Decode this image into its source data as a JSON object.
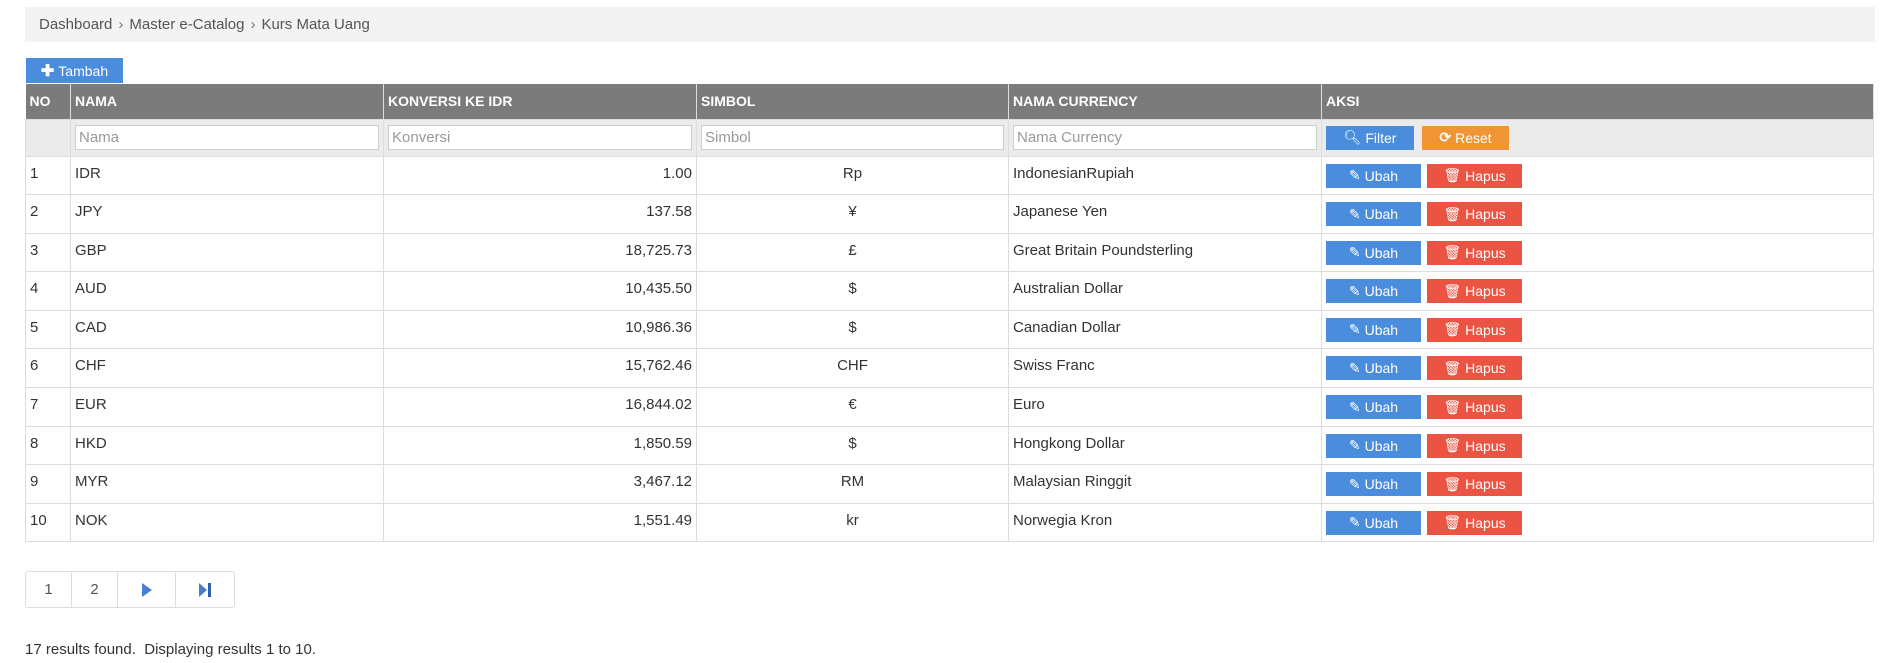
{
  "breadcrumb": [
    "Dashboard",
    "Master e-Catalog",
    "Kurs Mata Uang"
  ],
  "toolbar": {
    "add_label": "Tambah"
  },
  "table": {
    "columns": [
      "NO",
      "NAMA",
      "KONVERSI KE IDR",
      "SIMBOL",
      "NAMA CURRENCY",
      "AKSI"
    ],
    "filters": {
      "nama": "Nama",
      "konversi": "Konversi",
      "simbol": "Simbol",
      "nama_currency": "Nama Currency"
    },
    "filter_label": "Filter",
    "reset_label": "Reset",
    "edit_label": "Ubah",
    "delete_label": "Hapus",
    "rows": [
      {
        "no": "1",
        "nama": "IDR",
        "konversi": "1.00",
        "simbol": "Rp",
        "currency": "IndonesianRupiah"
      },
      {
        "no": "2",
        "nama": "JPY",
        "konversi": "137.58",
        "simbol": "¥",
        "currency": "Japanese Yen"
      },
      {
        "no": "3",
        "nama": "GBP",
        "konversi": "18,725.73",
        "simbol": "£",
        "currency": "Great Britain Poundsterling"
      },
      {
        "no": "4",
        "nama": "AUD",
        "konversi": "10,435.50",
        "simbol": "$",
        "currency": "Australian Dollar"
      },
      {
        "no": "5",
        "nama": "CAD",
        "konversi": "10,986.36",
        "simbol": "$",
        "currency": "Canadian Dollar"
      },
      {
        "no": "6",
        "nama": "CHF",
        "konversi": "15,762.46",
        "simbol": "CHF",
        "currency": "Swiss Franc"
      },
      {
        "no": "7",
        "nama": "EUR",
        "konversi": "16,844.02",
        "simbol": "€",
        "currency": "Euro"
      },
      {
        "no": "8",
        "nama": "HKD",
        "konversi": "1,850.59",
        "simbol": "$",
        "currency": "Hongkong Dollar"
      },
      {
        "no": "9",
        "nama": "MYR",
        "konversi": "3,467.12",
        "simbol": "RM",
        "currency": "Malaysian Ringgit"
      },
      {
        "no": "10",
        "nama": "NOK",
        "konversi": "1,551.49",
        "simbol": "kr",
        "currency": "Norwegia Kron"
      }
    ]
  },
  "pagination": {
    "pages": [
      "1",
      "2"
    ],
    "next_icon": "play-icon",
    "last_icon": "skip-last-icon"
  },
  "summary": "17 results found.  Displaying results 1 to 10.",
  "colors": {
    "header": "#7b7b7b",
    "primary": "#4a8ddc",
    "warning": "#ef9535",
    "danger": "#eb5443"
  }
}
